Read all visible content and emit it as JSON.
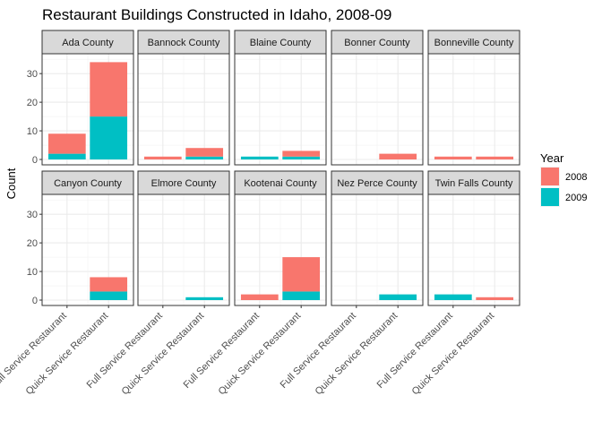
{
  "chart_data": {
    "type": "bar",
    "stacked": true,
    "title": "Restaurant Buildings Constructed in Idaho, 2008-09",
    "xlabel": "",
    "ylabel": "Count",
    "ylim": [
      0,
      36
    ],
    "yticks": [
      0,
      10,
      20,
      30
    ],
    "categories": [
      "Full Service Restaurant",
      "Quick Service Restaurant"
    ],
    "legend": {
      "title": "Year",
      "position": "right",
      "entries": [
        {
          "name": "2008",
          "color": "#F8766D"
        },
        {
          "name": "2009",
          "color": "#00BFC4"
        }
      ]
    },
    "facets": [
      {
        "name": "Ada County",
        "values": {
          "2008": [
            7,
            19
          ],
          "2009": [
            2,
            15
          ]
        }
      },
      {
        "name": "Bannock County",
        "values": {
          "2008": [
            1,
            3
          ],
          "2009": [
            0,
            1
          ]
        }
      },
      {
        "name": "Blaine County",
        "values": {
          "2008": [
            0,
            2
          ],
          "2009": [
            1,
            1
          ]
        }
      },
      {
        "name": "Bonner County",
        "values": {
          "2008": [
            0,
            2
          ],
          "2009": [
            0,
            0
          ]
        }
      },
      {
        "name": "Bonneville County",
        "values": {
          "2008": [
            1,
            1
          ],
          "2009": [
            0,
            0
          ]
        }
      },
      {
        "name": "Canyon County",
        "values": {
          "2008": [
            0,
            5
          ],
          "2009": [
            0,
            3
          ]
        }
      },
      {
        "name": "Elmore County",
        "values": {
          "2008": [
            0,
            0
          ],
          "2009": [
            0,
            1
          ]
        }
      },
      {
        "name": "Kootenai County",
        "values": {
          "2008": [
            2,
            12
          ],
          "2009": [
            0,
            3
          ]
        }
      },
      {
        "name": "Nez Perce County",
        "values": {
          "2008": [
            0,
            0
          ],
          "2009": [
            0,
            2
          ]
        }
      },
      {
        "name": "Twin Falls County",
        "values": {
          "2008": [
            0,
            1
          ],
          "2009": [
            2,
            0
          ]
        }
      }
    ],
    "grid": true
  }
}
